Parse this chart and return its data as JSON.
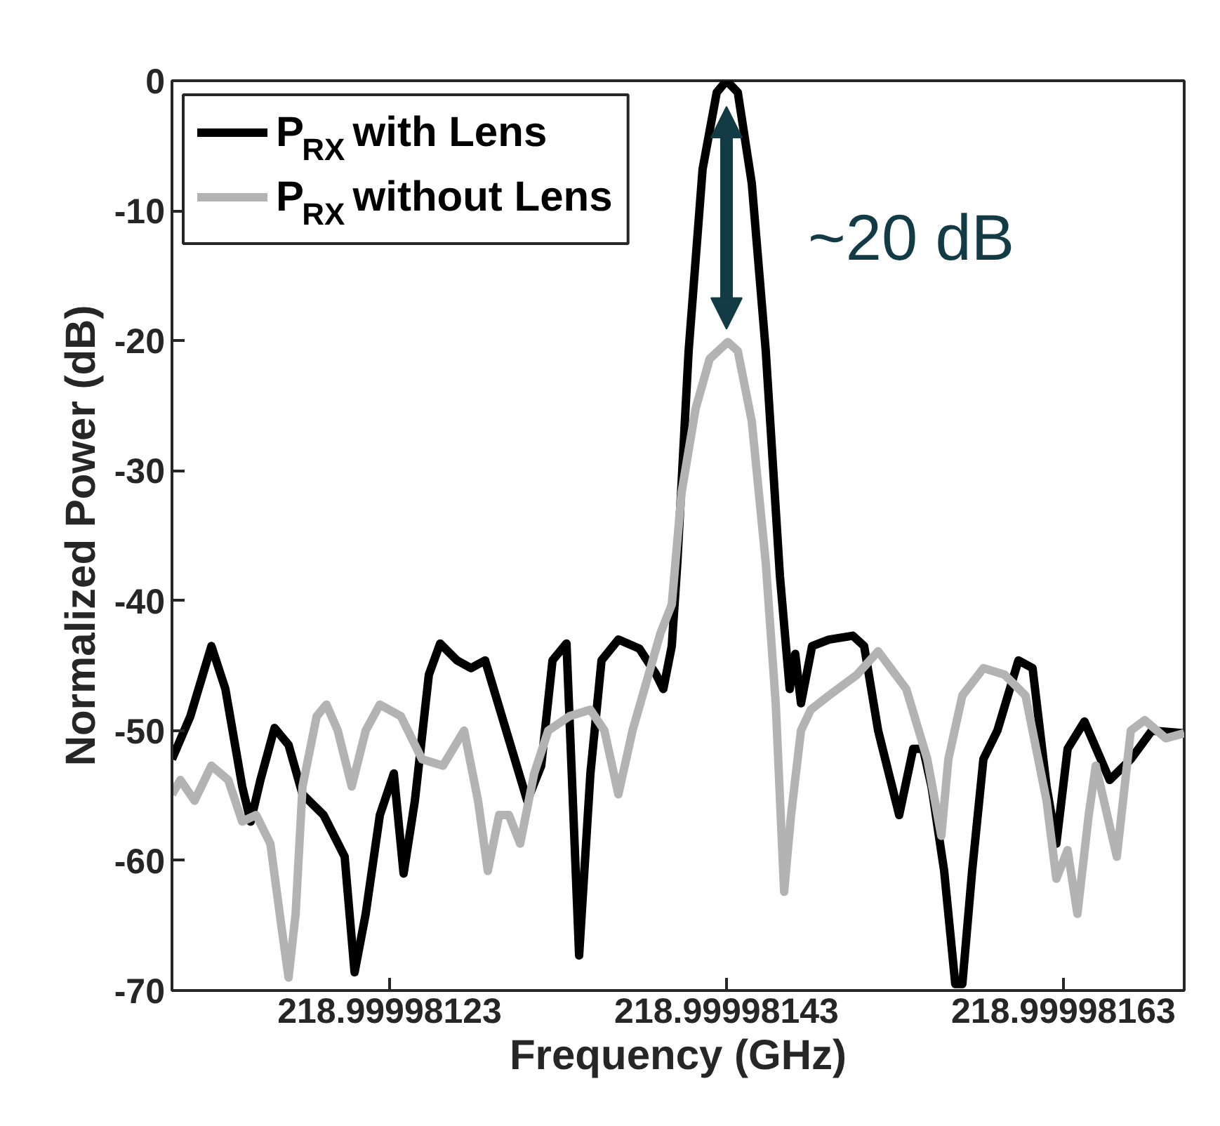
{
  "chart_data": {
    "type": "line",
    "xlabel": "Frequency (GHz)",
    "ylabel": "Normalized Power (dB)",
    "xlim": [
      218.9999811008,
      218.9999817017
    ],
    "ylim": [
      -70,
      0
    ],
    "xticks": [
      218.99998123,
      218.99998143,
      218.99998163
    ],
    "yticks": [
      -70,
      -60,
      -50,
      -40,
      -30,
      -20,
      -10,
      0
    ],
    "grid": false,
    "legend": "top left",
    "line_style": "solid",
    "marker": "none",
    "annotations": [
      "~20 dB"
    ],
    "series": [
      {
        "name": "P$_{RX}$ with Lens",
        "color": "#000000",
        "x": [
          218.9999811008,
          218.9999811117,
          218.9999811242,
          218.9999811325,
          218.9999811425,
          218.9999811475,
          218.9999811533,
          218.9999811617,
          218.99998117,
          218.9999811783,
          218.9999811908,
          218.9999812033,
          218.9999812092,
          218.9999812158,
          218.9999812242,
          218.9999812325,
          218.9999812383,
          218.999981245,
          218.9999812533,
          218.99998126,
          218.99998127,
          218.9999812783,
          218.9999812867,
          218.9999812992,
          218.9999813117,
          218.99998132,
          218.9999813267,
          218.999981335,
          218.9999813425,
          218.9999813492,
          218.9999813558,
          218.9999813658,
          218.9999813783,
          218.9999813883,
          218.9999813925,
          218.9999813975,
          218.9999814008,
          218.9999814075,
          218.9999814158,
          218.9999814242,
          218.99998143,
          218.9999814367,
          218.999981445,
          218.9999814533,
          218.9999814617,
          218.9999814675,
          218.9999814708,
          218.9999814742,
          218.9999814808,
          218.9999814908,
          218.999981505,
          218.9999815117,
          218.99998152,
          218.9999815325,
          218.9999815408,
          218.9999815467,
          218.9999815517,
          218.9999815592,
          218.9999815658,
          218.99998157,
          218.9999815758,
          218.9999815825,
          218.9999815908,
          218.9999816033,
          218.9999816117,
          218.99998162,
          218.9999816258,
          218.9999816325,
          218.9999816425,
          218.9999816575,
          218.99998167,
          218.9999816825,
          218.9999817017
        ],
        "values": [
          -52.2,
          -48.9,
          -43.5,
          -46.8,
          -54.3,
          -57.0,
          -53.8,
          -49.8,
          -51.1,
          -54.9,
          -56.5,
          -59.7,
          -68.6,
          -64.1,
          -56.5,
          -53.3,
          -61.0,
          -55.4,
          -45.7,
          -43.3,
          -44.6,
          -45.2,
          -44.6,
          -50.0,
          -55.4,
          -52.7,
          -44.6,
          -43.3,
          -67.3,
          -53.3,
          -44.6,
          -43.0,
          -43.7,
          -45.7,
          -46.8,
          -43.5,
          -37.1,
          -20.8,
          -6.8,
          -0.9,
          0,
          -0.9,
          -7.9,
          -20.8,
          -38.1,
          -46.8,
          -44.1,
          -47.9,
          -43.5,
          -43.0,
          -42.7,
          -43.5,
          -50.0,
          -56.5,
          -51.4,
          -51.4,
          -54.3,
          -60.8,
          -69.5,
          -69.5,
          -60.8,
          -52.2,
          -50.0,
          -44.6,
          -45.2,
          -54.3,
          -58.7,
          -51.4,
          -49.3,
          -53.8,
          -52.2,
          -50.0,
          -50.2
        ]
      },
      {
        "name": "P$_{RX}$ without Lens",
        "color": "#b3b3b3",
        "x": [
          218.9999811008,
          218.9999811058,
          218.9999811142,
          218.9999811242,
          218.9999811342,
          218.9999811425,
          218.9999811508,
          218.9999811592,
          218.9999811658,
          218.99998117,
          218.9999811742,
          218.9999811783,
          218.9999811867,
          218.9999811925,
          218.9999811992,
          218.9999812075,
          218.9999812158,
          218.9999812242,
          218.9999812367,
          218.9999812492,
          218.9999812617,
          218.9999812742,
          218.9999812825,
          218.9999812883,
          218.999981295,
          218.9999813008,
          218.9999813075,
          218.9999813158,
          218.9999813242,
          218.9999813367,
          218.9999813492,
          218.9999813575,
          218.9999813658,
          218.9999813742,
          218.9999813908,
          218.9999813975,
          218.9999814033,
          218.9999814117,
          218.99998142,
          218.9999814308,
          218.9999814367,
          218.999981445,
          218.9999814533,
          218.9999814592,
          218.9999814642,
          218.9999814683,
          218.9999814742,
          218.99998148,
          218.9999814908,
          218.9999815075,
          218.99998152,
          218.9999815367,
          218.9999815492,
          218.9999815575,
          218.9999815617,
          218.99998157,
          218.9999815825,
          218.999981595,
          218.9999816075,
          218.99998162,
          218.9999816258,
          218.9999816325,
          218.9999816383,
          218.999981645,
          218.9999816492,
          218.9999816617,
          218.99998167,
          218.9999816783,
          218.9999816908,
          218.9999817017
        ],
        "values": [
          -54.9,
          -53.8,
          -55.4,
          -52.7,
          -53.8,
          -57.0,
          -56.5,
          -58.7,
          -65.1,
          -69,
          -64.1,
          -54.3,
          -48.9,
          -48.0,
          -50.0,
          -54.3,
          -50.0,
          -48.0,
          -48.9,
          -52.2,
          -52.7,
          -50.0,
          -55.4,
          -60.8,
          -56.5,
          -56.5,
          -58.7,
          -53.3,
          -50.0,
          -48.9,
          -48.4,
          -50.0,
          -54.9,
          -50.0,
          -42.5,
          -40.3,
          -31.7,
          -25.2,
          -21.4,
          -20.1,
          -20.8,
          -26.2,
          -37.1,
          -47.9,
          -62.4,
          -56.5,
          -50.0,
          -48.4,
          -47.3,
          -45.7,
          -43.9,
          -46.8,
          -52.2,
          -58.1,
          -52.2,
          -47.3,
          -45.2,
          -45.7,
          -47.3,
          -55.4,
          -61.4,
          -59.2,
          -64.1,
          -56.5,
          -52.7,
          -59.7,
          -50.0,
          -49.2,
          -50.6,
          -50.2
        ]
      }
    ]
  }
}
